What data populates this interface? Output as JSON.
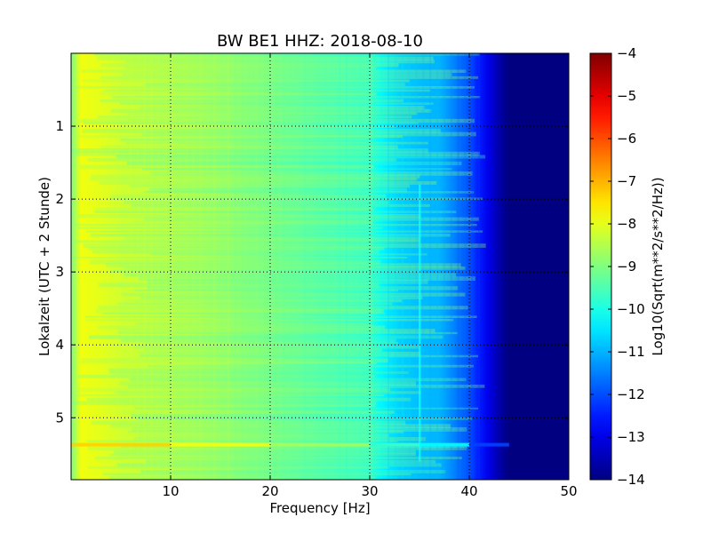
{
  "chart_data": {
    "type": "heatmap",
    "title": "BW BE1 HHZ: 2018-08-10",
    "xlabel": "Frequency [Hz]",
    "ylabel": "Lokalzeit (UTC + 2 Stunde)",
    "xlim": [
      0,
      50
    ],
    "ylim": [
      5.85,
      0
    ],
    "x_ticks": [
      10,
      20,
      30,
      40,
      50
    ],
    "y_ticks": [
      1,
      2,
      3,
      4,
      5
    ],
    "grid": true,
    "colormap": "jet",
    "colorbar": {
      "label": "Log10(Sqrt(m**2/s**2/Hz))",
      "range": [
        -14,
        -4
      ],
      "ticks": [
        -4,
        -5,
        -6,
        -7,
        -8,
        -9,
        -10,
        -11,
        -12,
        -13,
        -14
      ]
    },
    "frequency_profile": {
      "frequency_hz": [
        0,
        1,
        3,
        5,
        10,
        15,
        20,
        25,
        30,
        31,
        33,
        35,
        37,
        38,
        40,
        41,
        42,
        43,
        44,
        50
      ],
      "log10_amplitude": [
        -9.0,
        -7.9,
        -8.0,
        -8.2,
        -8.4,
        -8.7,
        -9.1,
        -9.5,
        -9.8,
        -10.3,
        -10.7,
        -10.9,
        -11.0,
        -11.3,
        -12.0,
        -12.5,
        -13.0,
        -13.6,
        -14.0,
        -14.0
      ]
    },
    "features": [
      {
        "type": "line",
        "frequency_hz": 35,
        "label": ""
      },
      {
        "type": "band",
        "time_h": 5.37,
        "label": ""
      }
    ]
  }
}
